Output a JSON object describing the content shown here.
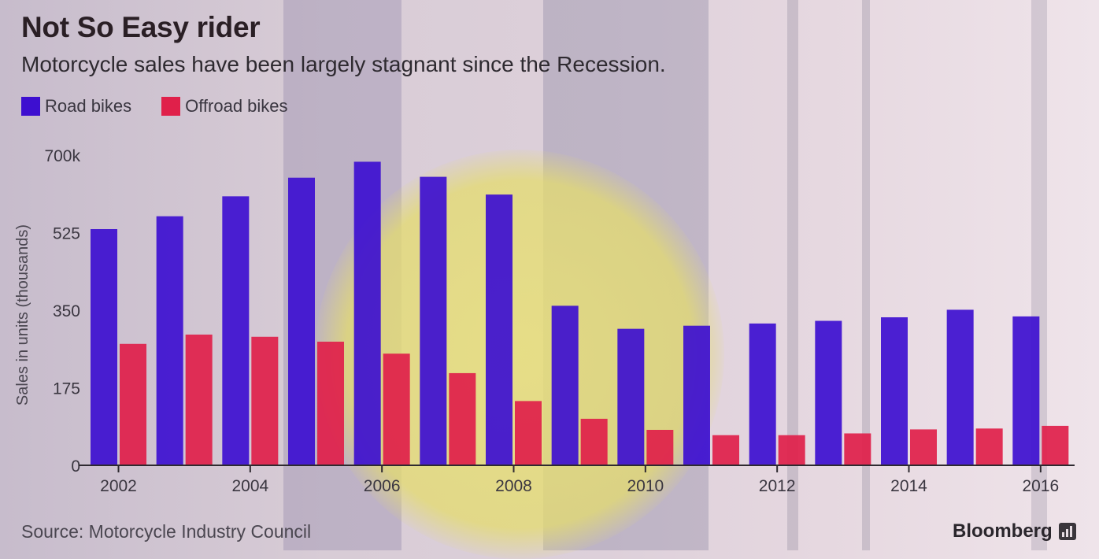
{
  "title": "Not So Easy rider",
  "subtitle": "Motorcycle sales have been largely stagnant since the Recession.",
  "source": "Source: Motorcycle Industry Council",
  "brand": "Bloomberg",
  "colors": {
    "road": "#3d0fd0",
    "offroad": "#e0204a",
    "axis": "#2e2a30",
    "tick_text": "#3a3640",
    "background_sun": "#e6dc74"
  },
  "chart_data": {
    "type": "bar",
    "title": "Not So Easy rider",
    "subtitle": "Motorcycle sales have been largely stagnant since the Recession.",
    "xlabel": "",
    "ylabel": "Sales in units (thousands)",
    "ylim": [
      0,
      700
    ],
    "y_ticks": [
      {
        "value": 0,
        "label": "0"
      },
      {
        "value": 175,
        "label": "175"
      },
      {
        "value": 350,
        "label": "350"
      },
      {
        "value": 525,
        "label": "525"
      },
      {
        "value": 700,
        "label": "700k"
      }
    ],
    "categories": [
      "2002",
      "2003",
      "2004",
      "2005",
      "2006",
      "2007",
      "2008",
      "2009",
      "2010",
      "2011",
      "2012",
      "2013",
      "2014",
      "2015",
      "2016"
    ],
    "x_tick_labels": [
      "2002",
      "",
      "2004",
      "",
      "2006",
      "",
      "2008",
      "",
      "2010",
      "",
      "2012",
      "",
      "2014",
      "",
      "2016"
    ],
    "legend_position": "top-left",
    "grid": false,
    "series": [
      {
        "name": "Road bikes",
        "color": "#3d0fd0",
        "values": [
          533,
          562,
          607,
          649,
          685,
          651,
          611,
          360,
          308,
          315,
          320,
          326,
          334,
          351,
          336
        ]
      },
      {
        "name": "Offroad bikes",
        "color": "#e0204a",
        "values": [
          274,
          295,
          290,
          279,
          252,
          208,
          145,
          105,
          80,
          68,
          68,
          72,
          81,
          83,
          89
        ]
      }
    ]
  }
}
